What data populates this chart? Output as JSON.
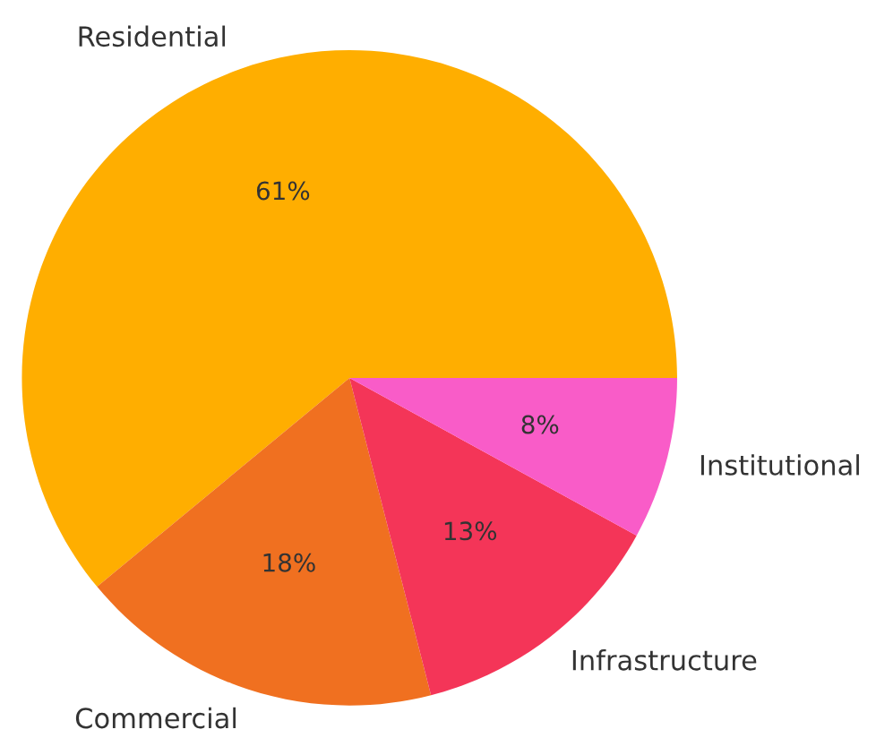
{
  "chart_data": {
    "type": "pie",
    "categories": [
      "Residential",
      "Commercial",
      "Infrastructure",
      "Institutional"
    ],
    "values": [
      61,
      18,
      13,
      8
    ],
    "colors": [
      "#ffae00",
      "#f07020",
      "#f43558",
      "#f95cc8"
    ],
    "value_labels": [
      "61%",
      "18%",
      "13%",
      "8%"
    ]
  }
}
